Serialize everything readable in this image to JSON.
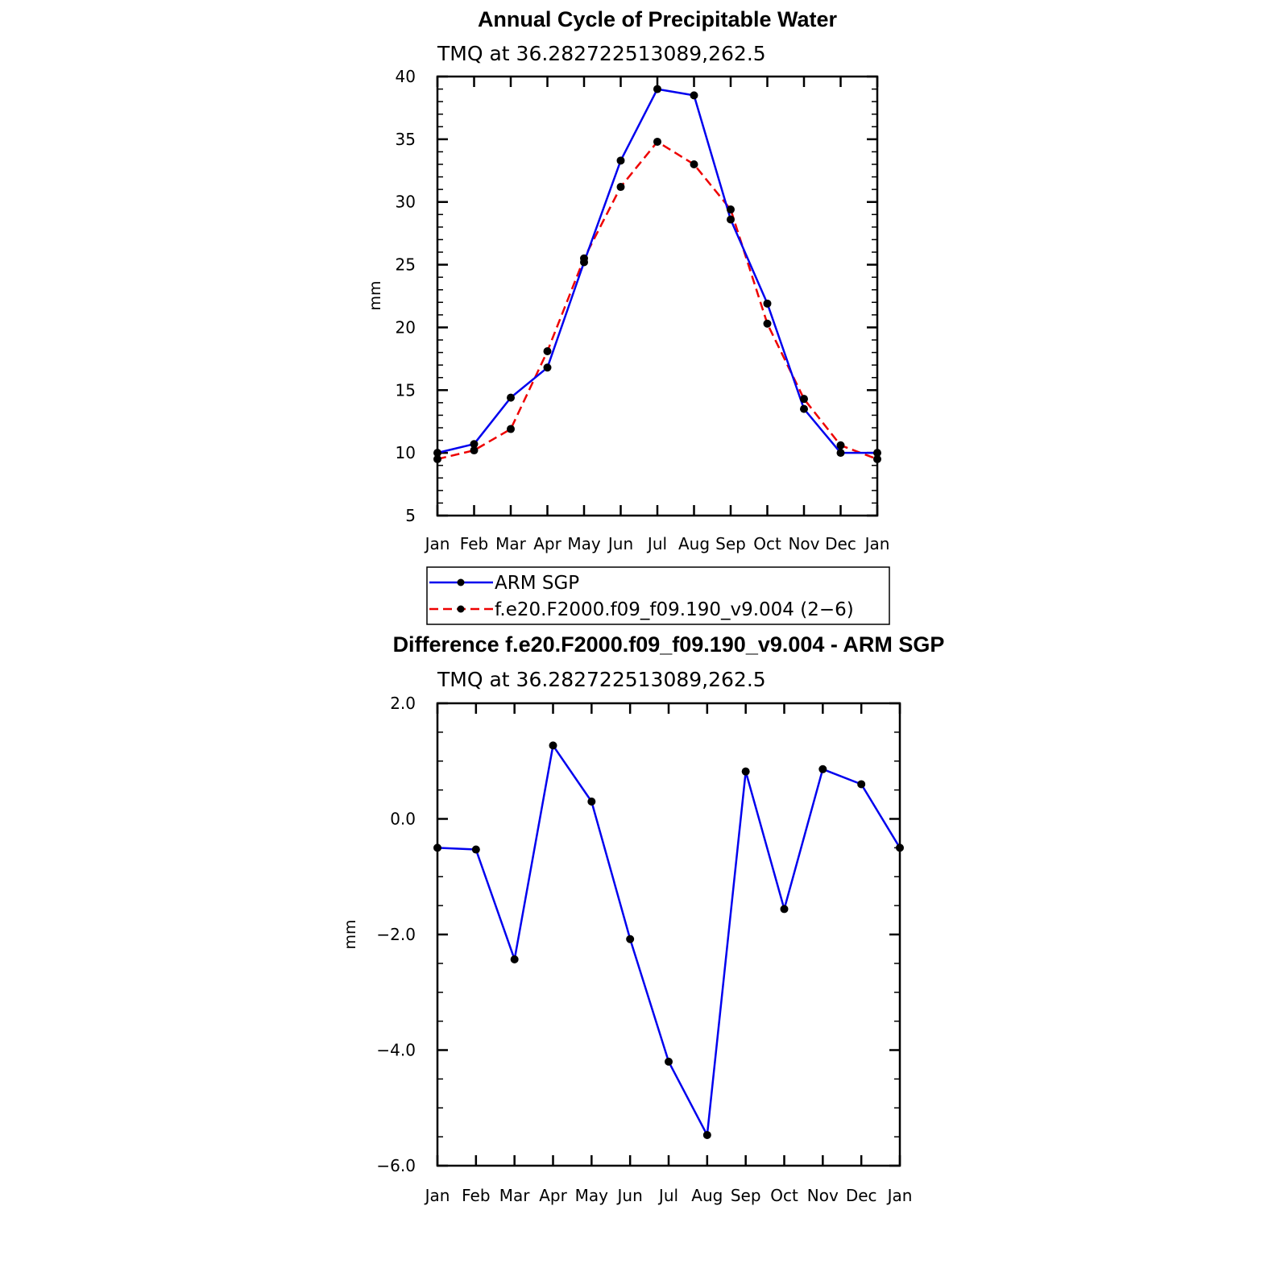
{
  "chart_data": [
    {
      "type": "line",
      "title": "Annual Cycle of Precipitable Water",
      "subtitle": "TMQ at 36.282722513089,262.5",
      "ylabel": "mm",
      "xlabel": "",
      "categories": [
        "Jan",
        "Feb",
        "Mar",
        "Apr",
        "May",
        "Jun",
        "Jul",
        "Aug",
        "Sep",
        "Oct",
        "Nov",
        "Dec",
        "Jan"
      ],
      "ylim": [
        5,
        40
      ],
      "yticks": [
        5,
        10,
        15,
        20,
        25,
        30,
        35,
        40
      ],
      "ytick_labels": [
        "5",
        "10",
        "15",
        "20",
        "25",
        "30",
        "35",
        "40"
      ],
      "series": [
        {
          "name": "ARM SGP",
          "color": "#0000ee",
          "dash": "solid",
          "values": [
            10.0,
            10.7,
            14.4,
            16.8,
            25.2,
            33.3,
            39.0,
            38.5,
            28.6,
            21.9,
            13.5,
            10.0,
            10.0
          ]
        },
        {
          "name": "f.e20.F2000.f09_f09.190_v9.004 (2−6)",
          "color": "#ee0000",
          "dash": "dashed",
          "values": [
            9.5,
            10.2,
            11.9,
            18.1,
            25.5,
            31.2,
            34.8,
            33.0,
            29.4,
            20.3,
            14.3,
            10.6,
            9.5
          ]
        }
      ],
      "legend": "below-plot"
    },
    {
      "type": "line",
      "title": "Difference f.e20.F2000.f09_f09.190_v9.004 - ARM SGP",
      "subtitle": "TMQ at 36.282722513089,262.5",
      "ylabel": "mm",
      "xlabel": "",
      "categories": [
        "Jan",
        "Feb",
        "Mar",
        "Apr",
        "May",
        "Jun",
        "Jul",
        "Aug",
        "Sep",
        "Oct",
        "Nov",
        "Dec",
        "Jan"
      ],
      "ylim": [
        -6,
        2
      ],
      "yticks": [
        -6,
        -4,
        -2,
        0,
        2
      ],
      "ytick_labels": [
        "−6.0",
        "−4.0",
        "−2.0",
        "0.0",
        "2.0"
      ],
      "series": [
        {
          "name": "Difference",
          "color": "#0000ee",
          "dash": "solid",
          "values": [
            -0.5,
            -0.53,
            -2.43,
            1.27,
            0.3,
            -2.08,
            -4.2,
            -5.47,
            0.82,
            -1.56,
            0.86,
            0.6,
            -0.5
          ]
        }
      ]
    }
  ]
}
